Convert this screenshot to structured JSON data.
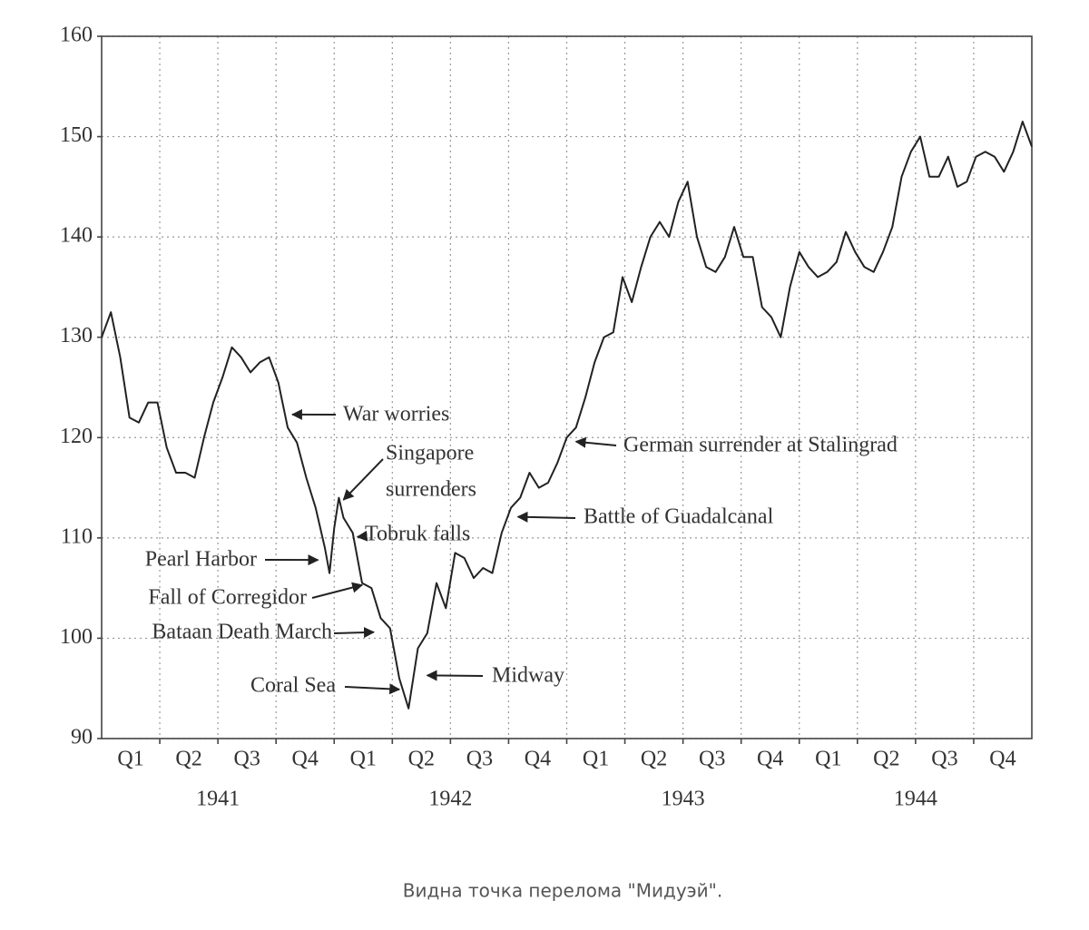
{
  "chart_data": {
    "type": "line",
    "caption": "Видна точка перелома \"Мидуэй\".",
    "quarters": [
      "Q1",
      "Q2",
      "Q3",
      "Q4",
      "Q1",
      "Q2",
      "Q3",
      "Q4",
      "Q1",
      "Q2",
      "Q3",
      "Q4",
      "Q1",
      "Q2",
      "Q3",
      "Q4"
    ],
    "years": [
      "1941",
      "1942",
      "1943",
      "1944"
    ],
    "xlim": [
      1941,
      1945
    ],
    "ylim": [
      90,
      160
    ],
    "yticks": [
      90,
      100,
      110,
      120,
      130,
      140,
      150,
      160
    ],
    "grid": true,
    "series": [
      {
        "color": "#222222",
        "x": [
          1941.0,
          1941.04,
          1941.08,
          1941.12,
          1941.16,
          1941.2,
          1941.24,
          1941.28,
          1941.32,
          1941.36,
          1941.4,
          1941.44,
          1941.48,
          1941.52,
          1941.56,
          1941.6,
          1941.64,
          1941.68,
          1941.72,
          1941.76,
          1941.8,
          1941.84,
          1941.88,
          1941.92,
          1941.96,
          1941.98,
          1942.0,
          1942.02,
          1942.04,
          1942.08,
          1942.12,
          1942.16,
          1942.2,
          1942.24,
          1942.28,
          1942.32,
          1942.36,
          1942.4,
          1942.44,
          1942.48,
          1942.52,
          1942.56,
          1942.6,
          1942.64,
          1942.68,
          1942.72,
          1942.76,
          1942.8,
          1942.84,
          1942.88,
          1942.92,
          1942.96,
          1943.0,
          1943.04,
          1943.08,
          1943.12,
          1943.16,
          1943.2,
          1943.24,
          1943.28,
          1943.32,
          1943.36,
          1943.4,
          1943.44,
          1943.48,
          1943.52,
          1943.56,
          1943.6,
          1943.64,
          1943.68,
          1943.72,
          1943.76,
          1943.8,
          1943.84,
          1943.88,
          1943.92,
          1943.96,
          1944.0,
          1944.04,
          1944.08,
          1944.12,
          1944.16,
          1944.2,
          1944.24,
          1944.28,
          1944.32,
          1944.36,
          1944.4,
          1944.44,
          1944.48,
          1944.52,
          1944.56,
          1944.6,
          1944.64,
          1944.68,
          1944.72,
          1944.76,
          1944.8,
          1944.84,
          1944.88,
          1944.92,
          1944.96,
          1945.0
        ],
        "values": [
          130,
          132.5,
          128,
          122,
          121.5,
          123.5,
          123.5,
          119,
          116.5,
          116.5,
          116,
          120,
          123.5,
          126,
          129,
          128,
          126.5,
          127.5,
          128,
          125.5,
          121,
          119.5,
          116,
          113,
          109,
          106.5,
          111,
          114,
          112,
          110.5,
          105.5,
          105,
          102,
          101,
          96,
          93,
          99,
          100.5,
          105.5,
          103,
          108.5,
          108,
          106,
          107,
          106.5,
          110.5,
          113,
          114,
          116.5,
          115,
          115.5,
          117.5,
          120,
          121,
          124,
          127.5,
          130,
          130.5,
          136,
          133.5,
          137,
          140,
          141.5,
          140,
          143.5,
          145.5,
          140,
          137,
          136.5,
          138,
          141,
          138,
          138,
          133,
          132,
          130,
          135,
          138.5,
          137,
          136,
          136.5,
          137.5,
          140.5,
          138.5,
          137,
          136.5,
          138.5,
          141,
          146,
          148.5,
          150,
          146,
          146,
          148,
          145,
          145.5,
          148,
          148.5,
          148,
          146.5,
          148.5,
          151.5,
          149
        ]
      }
    ],
    "annotations": [
      {
        "text": [
          "War worries"
        ],
        "x": 1941.82,
        "y": 122.3
      },
      {
        "text": [
          "Singapore",
          "surrenders"
        ],
        "x": 1942.04,
        "y": 113.8
      },
      {
        "text": [
          "Tobruk falls"
        ],
        "x": 1942.1,
        "y": 110.1
      },
      {
        "text": [
          "Pearl Harbor"
        ],
        "x": 1941.93,
        "y": 107.8
      },
      {
        "text": [
          "Fall of Corregidor"
        ],
        "x": 1942.12,
        "y": 105.3
      },
      {
        "text": [
          "Bataan Death March"
        ],
        "x": 1942.17,
        "y": 100.6
      },
      {
        "text": [
          "Coral Sea"
        ],
        "x": 1942.28,
        "y": 94.9
      },
      {
        "text": [
          "Midway"
        ],
        "x": 1942.4,
        "y": 96.3
      },
      {
        "text": [
          "Battle of Guadalcanal"
        ],
        "x": 1942.79,
        "y": 112.1
      },
      {
        "text": [
          "German surrender at Stalingrad"
        ],
        "x": 1943.04,
        "y": 119.6
      }
    ]
  }
}
